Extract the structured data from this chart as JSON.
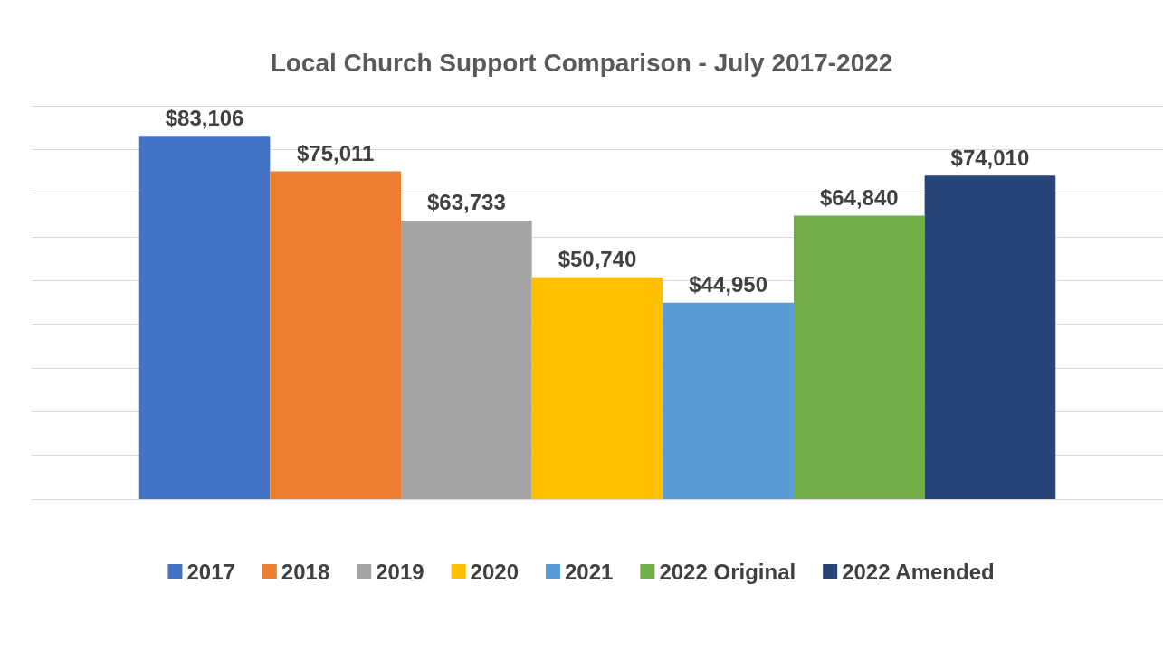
{
  "chart_data": {
    "type": "bar",
    "title": "Local Church Support Comparison - July 2017-2022",
    "categories": [
      null
    ],
    "series": [
      {
        "name": "2017",
        "color": "#4472c4",
        "values": [
          83106
        ],
        "value_labels": [
          "$83,106"
        ]
      },
      {
        "name": "2018",
        "color": "#ed7d31",
        "values": [
          75011
        ],
        "value_labels": [
          "$75,011"
        ]
      },
      {
        "name": "2019",
        "color": "#a5a5a5",
        "values": [
          63733
        ],
        "value_labels": [
          "$63,733"
        ]
      },
      {
        "name": "2020",
        "color": "#ffc000",
        "values": [
          50740
        ],
        "value_labels": [
          "$50,740"
        ]
      },
      {
        "name": "2021",
        "color": "#5b9bd5",
        "values": [
          44950
        ],
        "value_labels": [
          "$44,950"
        ]
      },
      {
        "name": "2022 Original",
        "color": "#70ad47",
        "values": [
          64840
        ],
        "value_labels": [
          "$64,840"
        ]
      },
      {
        "name": "2022 Amended",
        "color": "#264478",
        "values": [
          74010
        ],
        "value_labels": [
          "$74,010"
        ]
      }
    ],
    "ylim": [
      0,
      90000
    ],
    "yticks": [
      {
        "value": 0,
        "label": null
      },
      {
        "value": 10000,
        "label": null
      },
      {
        "value": 20000,
        "label": null
      },
      {
        "value": 30000,
        "label": null
      },
      {
        "value": 40000,
        "label": null
      },
      {
        "value": 50000,
        "label": null
      },
      {
        "value": 60000,
        "label": null
      },
      {
        "value": 70000,
        "label": null
      },
      {
        "value": 80000,
        "label": null
      },
      {
        "value": 90000,
        "label": null
      }
    ],
    "grid": "y",
    "legend": "bottom"
  }
}
